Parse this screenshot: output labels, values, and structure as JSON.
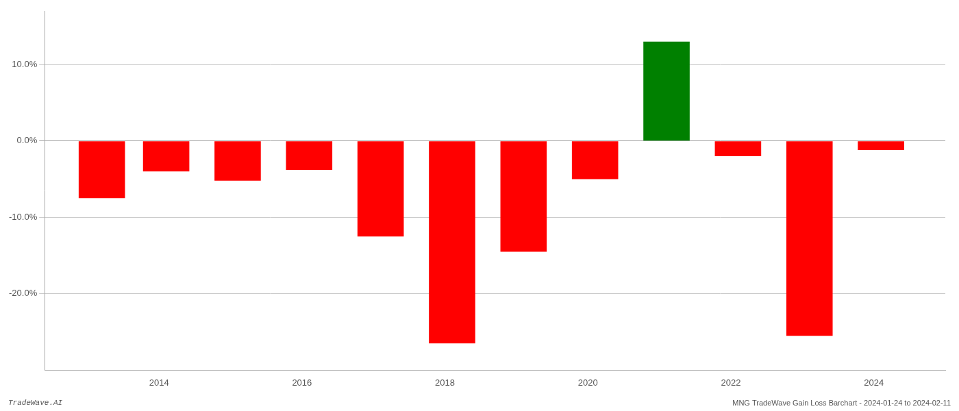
{
  "chart_data": {
    "type": "bar",
    "x": [
      2013.2,
      2014.1,
      2015.1,
      2016.1,
      2017.1,
      2018.1,
      2019.1,
      2020.1,
      2021.1,
      2022.1,
      2023.1,
      2024.1
    ],
    "values": [
      -7.5,
      -4.0,
      -5.2,
      -3.8,
      -12.5,
      -26.5,
      -14.5,
      -5.0,
      13.0,
      -2.0,
      -25.5,
      -1.2
    ],
    "colors": [
      "#ff0000",
      "#ff0000",
      "#ff0000",
      "#ff0000",
      "#ff0000",
      "#ff0000",
      "#ff0000",
      "#ff0000",
      "#008000",
      "#ff0000",
      "#ff0000",
      "#ff0000"
    ],
    "xlim": [
      2012.4,
      2025.0
    ],
    "xticks": [
      2014,
      2016,
      2018,
      2020,
      2022,
      2024
    ],
    "ylim": [
      -30,
      17
    ],
    "yticks": [
      {
        "value": -20,
        "label": "-20.0%"
      },
      {
        "value": -10,
        "label": "-10.0%"
      },
      {
        "value": 0,
        "label": "0.0%"
      },
      {
        "value": 10,
        "label": "10.0%"
      }
    ],
    "grid": true,
    "annotations": [
      "TradeWave.AI",
      "MNG TradeWave Gain Loss Barchart - 2024-01-24 to 2024-02-11"
    ]
  }
}
